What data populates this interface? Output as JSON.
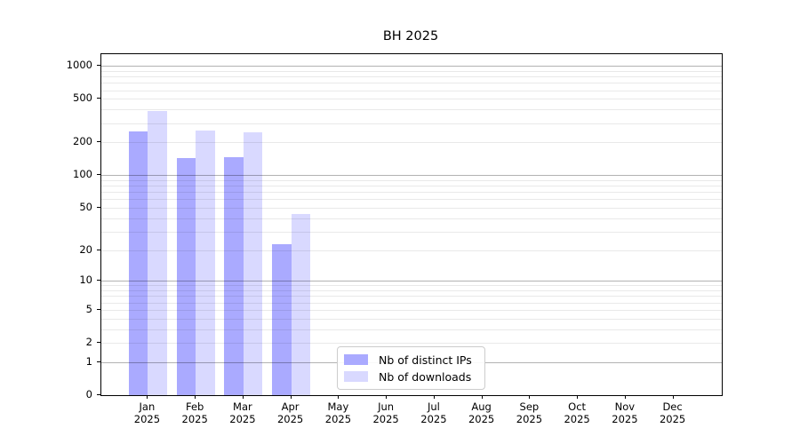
{
  "title": "BH 2025",
  "year_label": "2025",
  "colors": {
    "distinct_ips": "#aaaaff",
    "downloads": "#d9d9ff",
    "grid_major": "#b3b3b3",
    "grid_minor": "#e8e8e8",
    "axis": "#000000",
    "legend_border": "#cccccc"
  },
  "chart_data": {
    "type": "bar",
    "title": "BH 2025",
    "xlabel": "",
    "ylabel": "",
    "y_scale": "log10(value+1)",
    "ylim": [
      0,
      1280
    ],
    "grid": "horizontal major+minor",
    "legend_position": "bottom-center-inside",
    "categories": [
      "Jan",
      "Feb",
      "Mar",
      "Apr",
      "May",
      "Jun",
      "Jul",
      "Aug",
      "Sep",
      "Oct",
      "Nov",
      "Dec"
    ],
    "category_year": "2025",
    "y_ticks": [
      0,
      1,
      2,
      5,
      10,
      20,
      50,
      100,
      200,
      500,
      1000
    ],
    "series": [
      {
        "key": "ips",
        "name": "Nb of distinct IPs",
        "color": "#aaaaff",
        "values": [
          254,
          143,
          146,
          23,
          0,
          0,
          0,
          0,
          0,
          0,
          0,
          0
        ]
      },
      {
        "key": "downloads",
        "name": "Nb of downloads",
        "color": "#d9d9ff",
        "values": [
          388,
          256,
          246,
          44,
          0,
          0,
          0,
          0,
          0,
          0,
          0,
          0
        ]
      }
    ]
  }
}
